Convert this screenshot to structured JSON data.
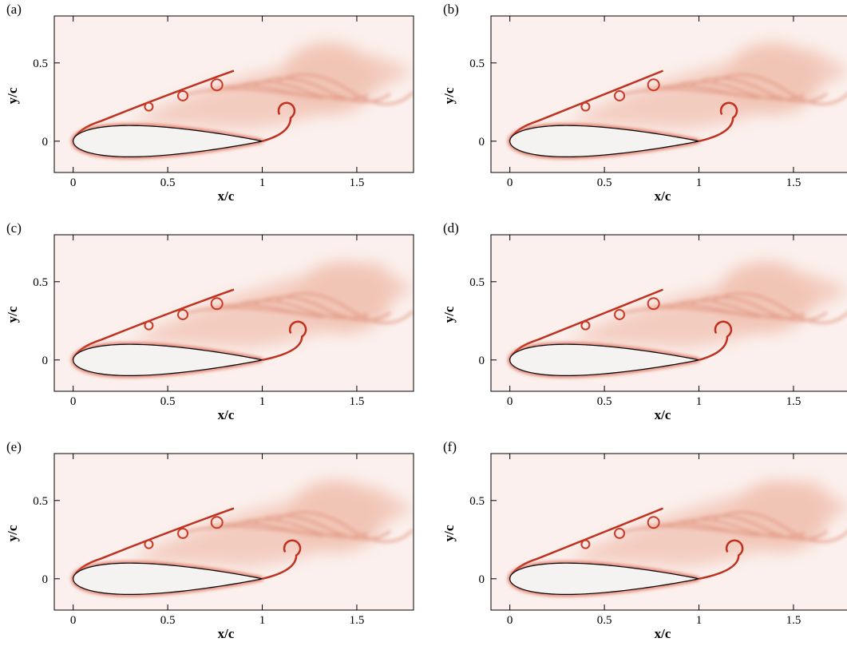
{
  "chart_data": [
    {
      "type": "contour",
      "panel_label": "(a)",
      "xlabel": "x/c",
      "ylabel": "y/c",
      "xlim": [
        -0.1,
        1.8
      ],
      "ylim": [
        -0.2,
        0.8
      ],
      "xticks": [
        0,
        0.5,
        1,
        1.5
      ],
      "yticks": [
        0,
        0.5
      ]
    },
    {
      "type": "contour",
      "panel_label": "(b)",
      "xlabel": "x/c",
      "ylabel": "y/c",
      "xlim": [
        -0.1,
        1.8
      ],
      "ylim": [
        -0.2,
        0.8
      ],
      "xticks": [
        0,
        0.5,
        1,
        1.5
      ],
      "yticks": [
        0,
        0.5
      ]
    },
    {
      "type": "contour",
      "panel_label": "(c)",
      "xlabel": "x/c",
      "ylabel": "y/c",
      "xlim": [
        -0.1,
        1.8
      ],
      "ylim": [
        -0.2,
        0.8
      ],
      "xticks": [
        0,
        0.5,
        1,
        1.5
      ],
      "yticks": [
        0,
        0.5
      ]
    },
    {
      "type": "contour",
      "panel_label": "(d)",
      "xlabel": "x/c",
      "ylabel": "y/c",
      "xlim": [
        -0.1,
        1.8
      ],
      "ylim": [
        -0.2,
        0.8
      ],
      "xticks": [
        0,
        0.5,
        1,
        1.5
      ],
      "yticks": [
        0,
        0.5
      ]
    },
    {
      "type": "contour",
      "panel_label": "(e)",
      "xlabel": "x/c",
      "ylabel": "y/c",
      "xlim": [
        -0.1,
        1.8
      ],
      "ylim": [
        -0.2,
        0.8
      ],
      "xticks": [
        0,
        0.5,
        1,
        1.5
      ],
      "yticks": [
        0,
        0.5
      ]
    },
    {
      "type": "contour",
      "panel_label": "(f)",
      "xlabel": "x/c",
      "ylabel": "y/c",
      "xlim": [
        -0.1,
        1.8
      ],
      "ylim": [
        -0.2,
        0.8
      ],
      "xticks": [
        0,
        0.5,
        1,
        1.5
      ],
      "yticks": [
        0,
        0.5
      ]
    }
  ]
}
